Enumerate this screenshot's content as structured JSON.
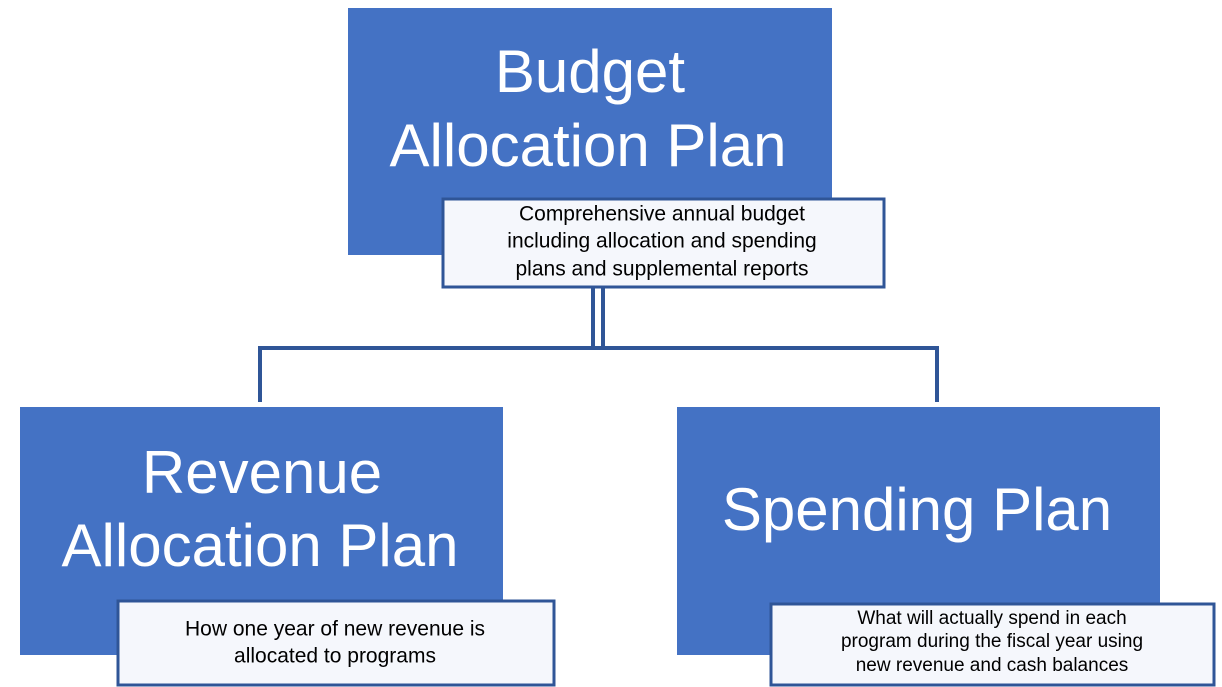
{
  "nodes": [
    {
      "title": [
        "Budget",
        "Allocation Plan"
      ],
      "description": [
        "Comprehensive annual budget",
        "including allocation and spending",
        "plans and supplemental reports"
      ]
    },
    {
      "title": [
        "Revenue",
        "Allocation Plan"
      ],
      "description": [
        "How one year of new revenue is",
        "allocated to programs"
      ]
    },
    {
      "title": [
        "Spending Plan"
      ],
      "description": [
        "What will actually spend in each",
        "program during the fiscal year using",
        "new revenue and cash balances"
      ]
    }
  ]
}
